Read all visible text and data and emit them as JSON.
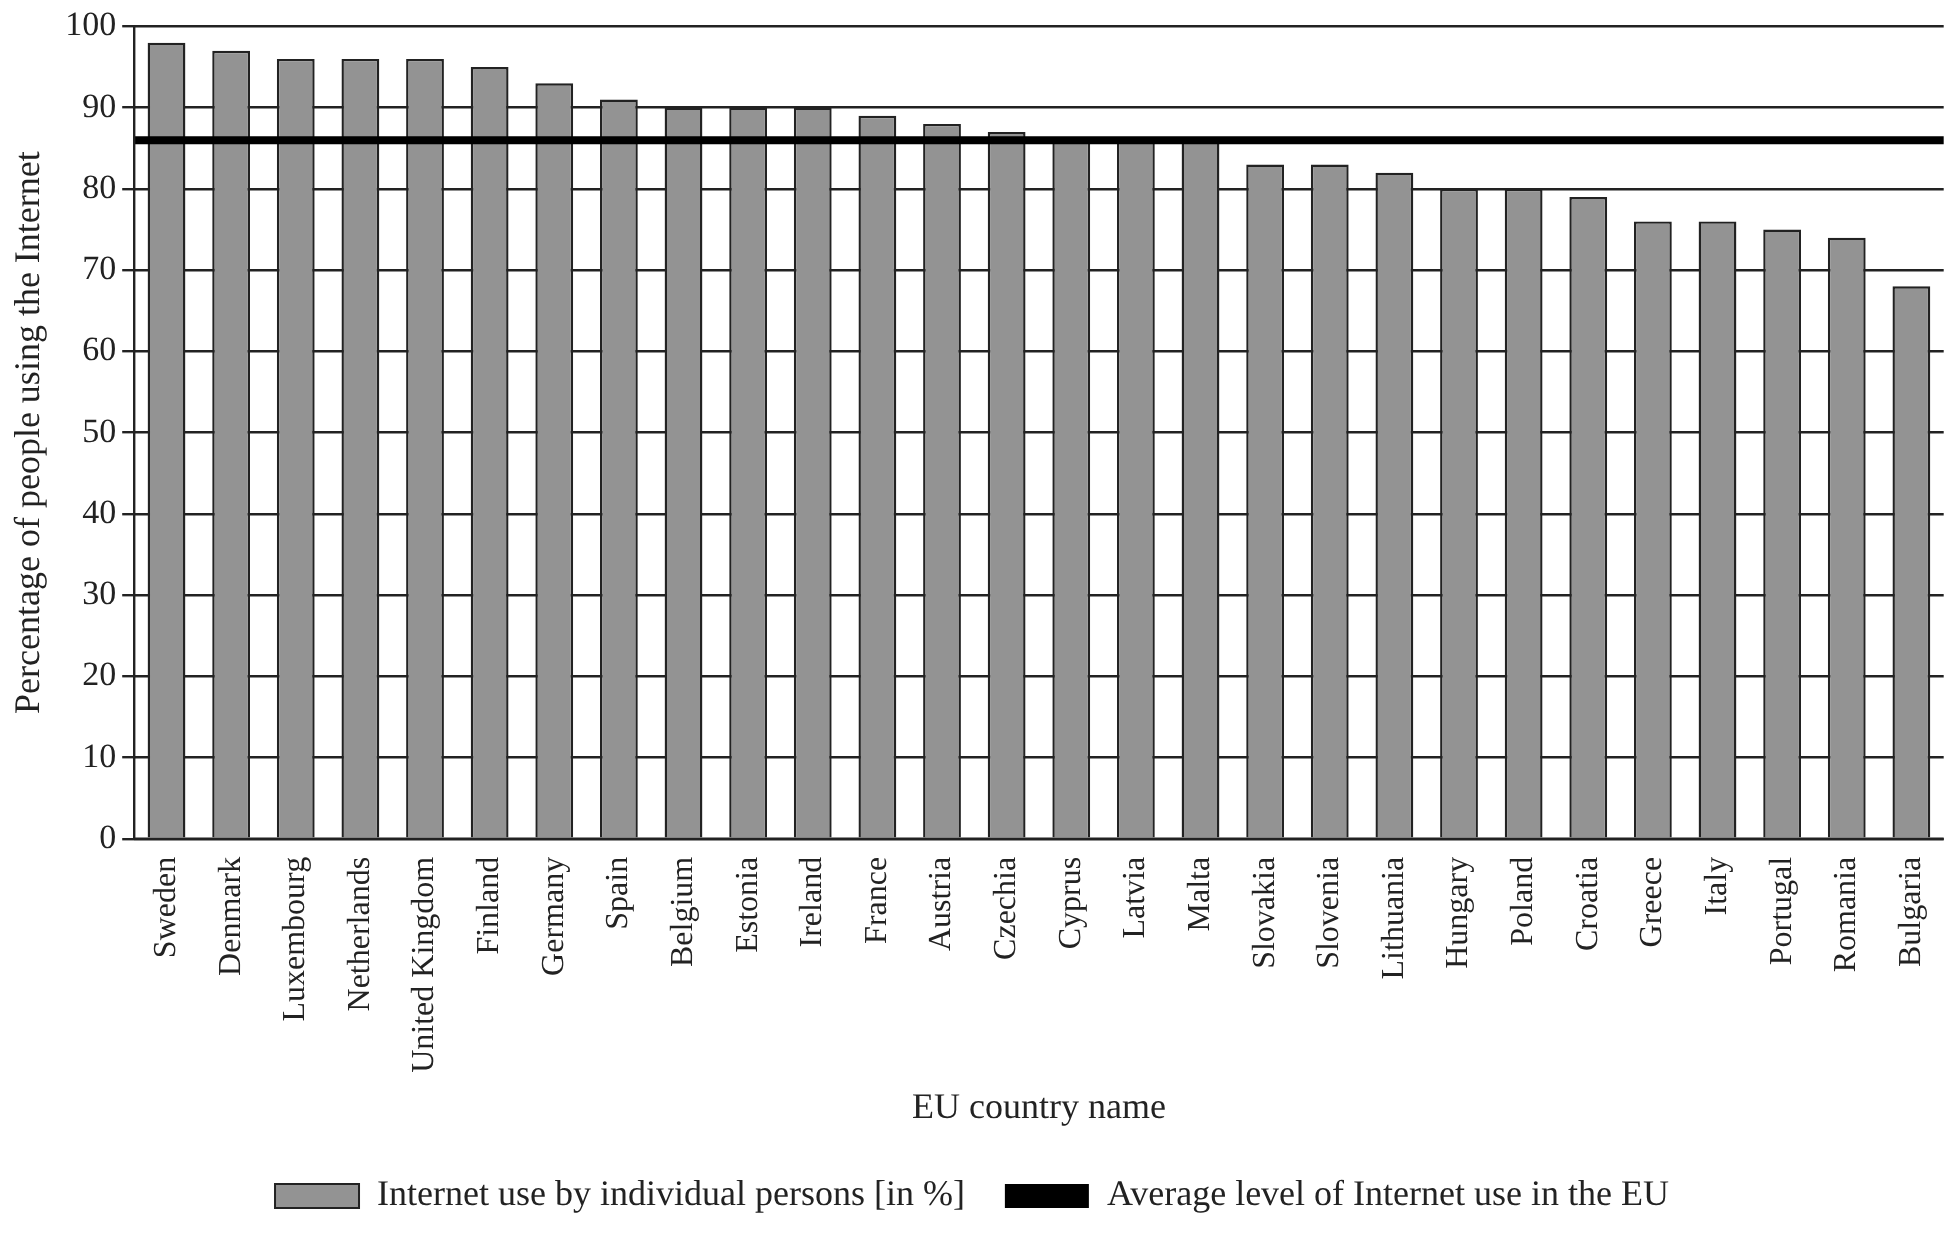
{
  "chart_data": {
    "type": "bar",
    "xlabel": "EU country name",
    "ylabel": "Percentage of people using the Internet",
    "categories": [
      "Sweden",
      "Denmark",
      "Luxembourg",
      "Netherlands",
      "United Kingdom",
      "Finland",
      "Germany",
      "Spain",
      "Belgium",
      "Estonia",
      "Ireland",
      "France",
      "Austria",
      "Czechia",
      "Cyprus",
      "Latvia",
      "Malta",
      "Slovakia",
      "Slovenia",
      "Lithuania",
      "Hungary",
      "Poland",
      "Croatia",
      "Greece",
      "Italy",
      "Portugal",
      "Romania",
      "Bulgaria"
    ],
    "series": [
      {
        "name": "Internet use by individual persons [in %]",
        "color": "#939393",
        "values": [
          98,
          97,
          96,
          96,
          96,
          95,
          93,
          91,
          90,
          90,
          90,
          89,
          88,
          87,
          86,
          86,
          86,
          83,
          83,
          82,
          80,
          80,
          79,
          76,
          76,
          75,
          74,
          68
        ]
      }
    ],
    "ref_lines": [
      {
        "axis": "y",
        "value": 86,
        "label": "Average level of Internet use in the EU",
        "color": "#000000"
      }
    ],
    "ylim": [
      0,
      100
    ],
    "yticks": [
      0,
      10,
      20,
      30,
      40,
      50,
      60,
      70,
      80,
      90,
      100
    ],
    "grid": "y",
    "legend": "bottom"
  }
}
